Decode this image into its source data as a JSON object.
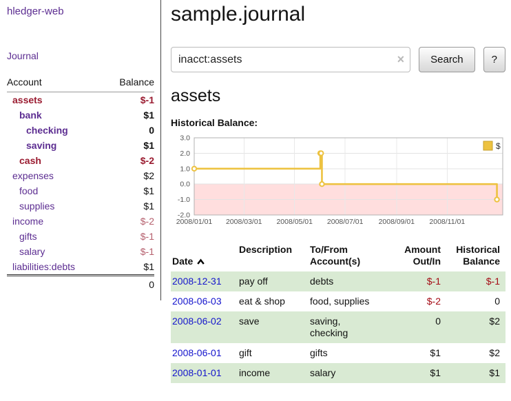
{
  "colors": {
    "link_purple": "#5c2d91",
    "negative_dark_red": "#9a1b30",
    "negative_muted_red": "#b55f6d",
    "negative_amount_red": "#a40a14",
    "date_link_blue": "#1414cc",
    "row_highlight_green": "#d9ead3",
    "chart_series_gold": "#edc240",
    "chart_negative_region_pink": "#ffdede"
  },
  "app": {
    "title": "hledger-web"
  },
  "sidebar": {
    "journal_link": "Journal",
    "accounts": {
      "col_account": "Account",
      "col_balance": "Balance",
      "rows": [
        {
          "name": "assets",
          "balance": "$-1"
        },
        {
          "name": "bank",
          "balance": "$1"
        },
        {
          "name": "checking",
          "balance": "0"
        },
        {
          "name": "saving",
          "balance": "$1"
        },
        {
          "name": "cash",
          "balance": "$-2"
        },
        {
          "name": "expenses",
          "balance": "$2"
        },
        {
          "name": "food",
          "balance": "$1"
        },
        {
          "name": "supplies",
          "balance": "$1"
        },
        {
          "name": "income",
          "balance": "$-2"
        },
        {
          "name": "gifts",
          "balance": "$-1"
        },
        {
          "name": "salary",
          "balance": "$-1"
        },
        {
          "name": "liabilities:debts",
          "balance": "$1"
        }
      ],
      "total": "0"
    }
  },
  "main": {
    "title": "sample.journal",
    "search": {
      "value": "inacct:assets",
      "clear_icon": "×",
      "button_label": "Search",
      "help_label": "?"
    },
    "account_heading": "assets",
    "chart_title": "Historical Balance:"
  },
  "chart_data": {
    "type": "line",
    "style": "step-after",
    "title": "Historical Balance",
    "legend": {
      "label": "$",
      "position": "top-right"
    },
    "series": [
      {
        "name": "$",
        "color": "#edc240",
        "points": [
          {
            "date": "2008-01-01",
            "value": 1
          },
          {
            "date": "2008-06-01",
            "value": 2
          },
          {
            "date": "2008-06-02",
            "value": 2
          },
          {
            "date": "2008-06-03",
            "value": 0
          },
          {
            "date": "2008-12-31",
            "value": -1
          }
        ]
      }
    ],
    "ylim": [
      -2,
      3
    ],
    "yticks": [
      "3.0",
      "2.0",
      "1.0",
      "0.0",
      "-1.0",
      "-2.0"
    ],
    "xticks": [
      {
        "date": "2008-01-01",
        "label": "2008/01/01"
      },
      {
        "date": "2008-03-01",
        "label": "2008/03/01"
      },
      {
        "date": "2008-05-01",
        "label": "2008/05/01"
      },
      {
        "date": "2008-07-01",
        "label": "2008/07/01"
      },
      {
        "date": "2008-09-01",
        "label": "2008/09/01"
      },
      {
        "date": "2008-11-01",
        "label": "2008/11/01"
      }
    ],
    "xrange": [
      "2008-01-01",
      "2009-01-07"
    ],
    "grid": true,
    "negative_region_color": "#ffdede"
  },
  "register": {
    "columns": {
      "date": "Date",
      "description": "Description",
      "accounts": "To/From\nAccount(s)",
      "amount": "Amount\nOut/In",
      "balance": "Historical\nBalance"
    },
    "rows": [
      {
        "date": "2008-12-31",
        "description": "pay off",
        "accounts": "debts",
        "amount": "$-1",
        "balance": "$-1"
      },
      {
        "date": "2008-06-03",
        "description": "eat & shop",
        "accounts": "food, supplies",
        "amount": "$-2",
        "balance": "0"
      },
      {
        "date": "2008-06-02",
        "description": "save",
        "accounts": "saving,\nchecking",
        "amount": "0",
        "balance": "$2"
      },
      {
        "date": "2008-06-01",
        "description": "gift",
        "accounts": "gifts",
        "amount": "$1",
        "balance": "$2"
      },
      {
        "date": "2008-01-01",
        "description": "income",
        "accounts": "salary",
        "amount": "$1",
        "balance": "$1"
      }
    ]
  }
}
